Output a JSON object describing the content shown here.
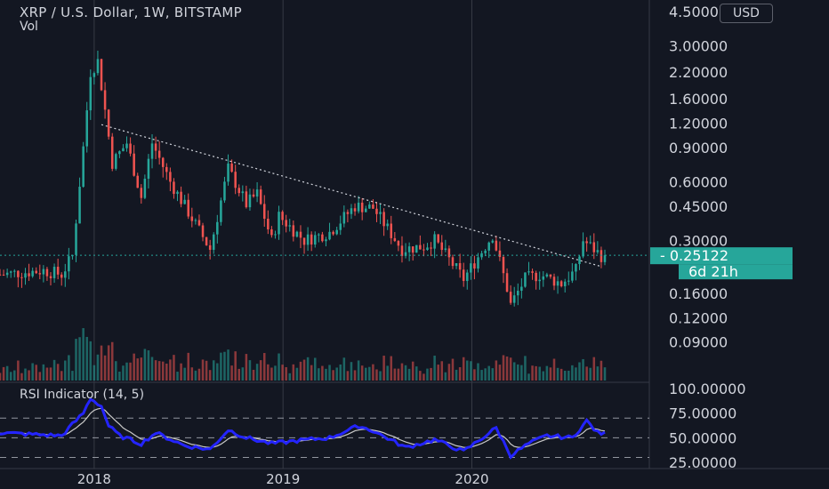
{
  "header": {
    "title": "XRP / U.S. Dollar, 1W, BITSTAMP",
    "vol_label": "Vol",
    "currency_button": "USD",
    "rsi_label": "RSI Indicator (14, 5)"
  },
  "colors": {
    "background": "#131722",
    "up": "#26a69a",
    "down": "#ef5350",
    "rsi_line": "#2424ff",
    "rsi_signal": "#c8c8c8",
    "badge": "#26a69a"
  },
  "chart_data": [
    {
      "type": "candlestick",
      "scale": "log",
      "ylim": [
        0.075,
        4.5
      ],
      "yticks": [
        "4.50000",
        "3.00000",
        "2.20000",
        "1.60000",
        "1.20000",
        "0.90000",
        "0.60000",
        "0.45000",
        "0.30000",
        "0.16000",
        "0.12000",
        "0.09000"
      ],
      "ytick_values": [
        4.5,
        3.0,
        2.2,
        1.6,
        1.2,
        0.9,
        0.6,
        0.45,
        0.3,
        0.16,
        0.12,
        0.09
      ],
      "xlabels": [
        "2018",
        "2019",
        "2020"
      ],
      "xlabel_dates": [
        "2018-01-01",
        "2019-01-01",
        "2020-01-01"
      ],
      "x_range": [
        "2017-07-03",
        "2020-09-14"
      ],
      "last_price": "0.25122",
      "countdown": "6d 21h",
      "trendline": {
        "start": {
          "date": "2018-01-15",
          "price": 1.18
        },
        "end": {
          "date": "2020-09-07",
          "price": 0.22
        }
      },
      "support_line": {
        "price": 0.25122
      },
      "grid": true,
      "close_anchors": [
        [
          "2017-07-03",
          0.2
        ],
        [
          "2017-09-25",
          0.21
        ],
        [
          "2017-10-30",
          0.2
        ],
        [
          "2017-11-20",
          0.25
        ],
        [
          "2017-12-11",
          0.9
        ],
        [
          "2017-12-25",
          2.2
        ],
        [
          "2018-01-08",
          2.5
        ],
        [
          "2018-01-22",
          1.4
        ],
        [
          "2018-02-05",
          0.75
        ],
        [
          "2018-03-05",
          0.95
        ],
        [
          "2018-04-02",
          0.5
        ],
        [
          "2018-04-23",
          0.95
        ],
        [
          "2018-05-28",
          0.6
        ],
        [
          "2018-06-25",
          0.45
        ],
        [
          "2018-08-13",
          0.27
        ],
        [
          "2018-09-17",
          0.7
        ],
        [
          "2018-10-22",
          0.46
        ],
        [
          "2018-11-12",
          0.52
        ],
        [
          "2018-12-10",
          0.3
        ],
        [
          "2018-12-24",
          0.4
        ],
        [
          "2019-02-11",
          0.3
        ],
        [
          "2019-04-01",
          0.33
        ],
        [
          "2019-05-20",
          0.45
        ],
        [
          "2019-06-24",
          0.44
        ],
        [
          "2019-08-19",
          0.27
        ],
        [
          "2019-09-30",
          0.28
        ],
        [
          "2019-10-21",
          0.3
        ],
        [
          "2019-12-16",
          0.19
        ],
        [
          "2020-02-10",
          0.32
        ],
        [
          "2020-03-09",
          0.17
        ],
        [
          "2020-03-16",
          0.14
        ],
        [
          "2020-04-13",
          0.19
        ],
        [
          "2020-05-11",
          0.2
        ],
        [
          "2020-06-22",
          0.18
        ],
        [
          "2020-07-20",
          0.21
        ],
        [
          "2020-08-03",
          0.3
        ],
        [
          "2020-08-24",
          0.27
        ],
        [
          "2020-09-07",
          0.25
        ]
      ]
    },
    {
      "type": "line",
      "name": "RSI",
      "ylim": [
        25,
        100
      ],
      "yticks": [
        "100.00000",
        "75.00000",
        "50.00000",
        "25.00000"
      ],
      "ytick_values": [
        100,
        75,
        50,
        25
      ],
      "levels": [
        70,
        50,
        30
      ],
      "rsi_anchors": [
        [
          "2017-07-03",
          55
        ],
        [
          "2017-10-30",
          52
        ],
        [
          "2017-12-11",
          75
        ],
        [
          "2017-12-25",
          90
        ],
        [
          "2018-01-15",
          82
        ],
        [
          "2018-01-29",
          62
        ],
        [
          "2018-02-19",
          52
        ],
        [
          "2018-04-02",
          44
        ],
        [
          "2018-04-30",
          55
        ],
        [
          "2018-06-25",
          42
        ],
        [
          "2018-08-13",
          38
        ],
        [
          "2018-09-17",
          58
        ],
        [
          "2018-10-22",
          50
        ],
        [
          "2018-12-10",
          44
        ],
        [
          "2019-01-28",
          47
        ],
        [
          "2019-04-01",
          50
        ],
        [
          "2019-05-27",
          62
        ],
        [
          "2019-06-24",
          57
        ],
        [
          "2019-08-26",
          40
        ],
        [
          "2019-10-21",
          48
        ],
        [
          "2019-12-16",
          36
        ],
        [
          "2020-02-17",
          60
        ],
        [
          "2020-03-16",
          32
        ],
        [
          "2020-04-20",
          44
        ],
        [
          "2020-05-25",
          52
        ],
        [
          "2020-07-13",
          50
        ],
        [
          "2020-08-10",
          67
        ],
        [
          "2020-08-31",
          55
        ],
        [
          "2020-09-14",
          54
        ]
      ]
    }
  ]
}
